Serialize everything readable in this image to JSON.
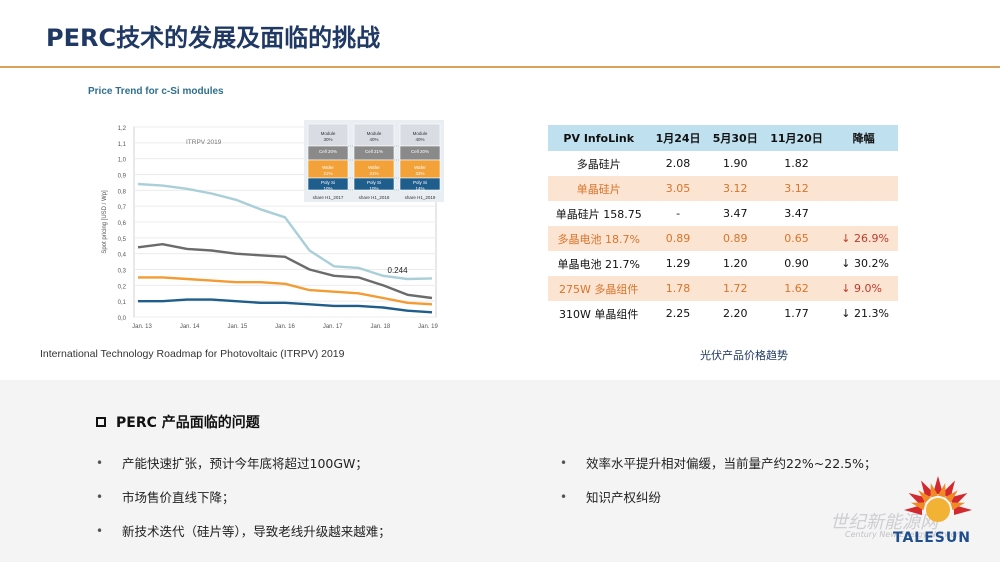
{
  "slide": {
    "title": "PERC技术的发展及面临的挑战"
  },
  "chart_data": {
    "type": "line",
    "title": "Price Trend for c-Si modules",
    "ylabel": "Spot pricing [USD / Wp]",
    "caption": "International Technology Roadmap for Photovoltaic (ITRPV) 2019",
    "source_tag": "ITRPV 2019",
    "y_ticks": [
      "1,2",
      "1,1",
      "1,0",
      "0,9",
      "0,8",
      "0,7",
      "0,6",
      "0,5",
      "0,4",
      "0,3",
      "0,2",
      "0,1",
      "0,0"
    ],
    "ylim": [
      0,
      1.2
    ],
    "x_ticks": [
      "Jan. 13",
      "Jan. 14",
      "Jan. 15",
      "Jan. 16",
      "Jan. 17",
      "Jan. 18",
      "Jan. 19"
    ],
    "annotation": "0.244",
    "series": [
      {
        "color": "#a9cfd8",
        "values": [
          0.84,
          0.83,
          0.81,
          0.78,
          0.74,
          0.68,
          0.63,
          0.42,
          0.32,
          0.31,
          0.26,
          0.24,
          0.244
        ]
      },
      {
        "color": "#6b6b6b",
        "values": [
          0.44,
          0.46,
          0.43,
          0.42,
          0.4,
          0.39,
          0.38,
          0.3,
          0.26,
          0.25,
          0.2,
          0.14,
          0.12
        ]
      },
      {
        "color": "#f39c33",
        "values": [
          0.25,
          0.25,
          0.24,
          0.23,
          0.22,
          0.22,
          0.21,
          0.17,
          0.16,
          0.15,
          0.12,
          0.09,
          0.08
        ]
      },
      {
        "color": "#1f5d8c",
        "values": [
          0.1,
          0.1,
          0.11,
          0.11,
          0.1,
          0.09,
          0.09,
          0.08,
          0.07,
          0.07,
          0.06,
          0.04,
          0.03
        ]
      }
    ],
    "inset_bars": [
      {
        "label": "share H1_2017",
        "segments": [
          {
            "name": "Module",
            "pct": "30%"
          },
          {
            "name": "Cell 20%",
            "pct": ""
          },
          {
            "name": "Wafer",
            "pct": "21%"
          },
          {
            "name": "Poly Si",
            "pct": "10%"
          }
        ]
      },
      {
        "label": "share H1_2018",
        "segments": [
          {
            "name": "Module",
            "pct": "40%"
          },
          {
            "name": "Cell 21%",
            "pct": ""
          },
          {
            "name": "Wafer",
            "pct": "21%"
          },
          {
            "name": "Poly Si",
            "pct": "10%"
          }
        ]
      },
      {
        "label": "share H1_2019",
        "segments": [
          {
            "name": "Module",
            "pct": "40%"
          },
          {
            "name": "Cell 20%",
            "pct": ""
          },
          {
            "name": "Wafer",
            "pct": "32%"
          },
          {
            "name": "Poly Si",
            "pct": "14%"
          }
        ]
      }
    ]
  },
  "price_table": {
    "headers": [
      "PV InfoLink",
      "1月24日",
      "5月30日",
      "11月20日",
      "降幅"
    ],
    "rows": [
      [
        "多晶硅片",
        "2.08",
        "1.90",
        "1.82",
        ""
      ],
      [
        "单晶硅片",
        "3.05",
        "3.12",
        "3.12",
        ""
      ],
      [
        "单晶硅片 158.75",
        "-",
        "3.47",
        "3.47",
        ""
      ],
      [
        "多晶电池 18.7%",
        "0.89",
        "0.89",
        "0.65",
        "↓ 26.9%"
      ],
      [
        "单晶电池 21.7%",
        "1.29",
        "1.20",
        "0.90",
        "↓ 30.2%"
      ],
      [
        "275W 多晶组件",
        "1.78",
        "1.72",
        "1.62",
        "↓ 9.0%"
      ],
      [
        "310W 单晶组件",
        "2.25",
        "2.20",
        "1.77",
        "↓ 21.3%"
      ]
    ],
    "caption": "光伏产品价格趋势"
  },
  "problems": {
    "heading": "PERC 产品面临的问题",
    "left": [
      "产能快速扩张，预计今年底将超过100GW；",
      "市场售价直线下降；",
      "新技术迭代（硅片等），导致老线升级越来越难；"
    ],
    "right": [
      "效率水平提升相对偏缓，当前量产约22%~22.5%；",
      "知识产权纠纷"
    ],
    "bullet_symbol": "•"
  },
  "branding": {
    "logo_text": "TALESUN",
    "watermark": "世纪新能源网",
    "watermark_sub": "Century New Energy Network"
  }
}
